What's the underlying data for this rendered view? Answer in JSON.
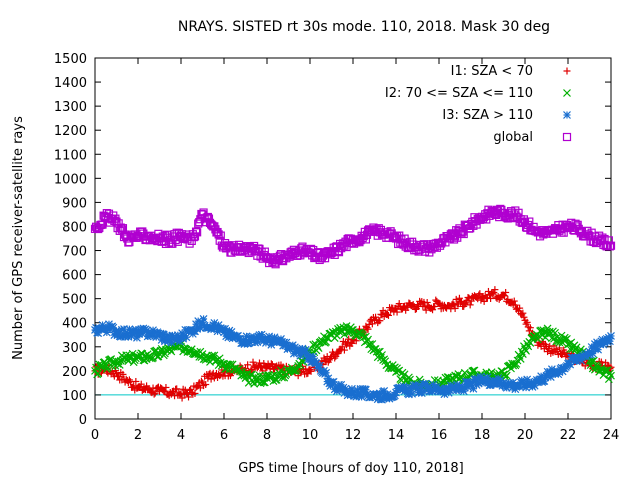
{
  "chart_data": {
    "type": "scatter",
    "title": "NRAYS. SISTED rt 30s mode. 110, 2018. Mask 30 deg",
    "xlabel": "GPS time [hours of doy 110, 2018]",
    "ylabel": "Number of GPS receiver-satellite rays",
    "xlim": [
      0,
      24
    ],
    "ylim": [
      0,
      1500
    ],
    "xticks": [
      0,
      2,
      4,
      6,
      8,
      10,
      12,
      14,
      16,
      18,
      20,
      22,
      24
    ],
    "yticks": [
      0,
      100,
      200,
      300,
      400,
      500,
      600,
      700,
      800,
      900,
      1000,
      1100,
      1200,
      1300,
      1400,
      1500
    ],
    "threshold_line": {
      "y": 100,
      "color": "#00c8c8"
    },
    "legend_position": "top-right",
    "series": [
      {
        "name": "I1: SZA < 70",
        "marker": "plus",
        "color": "#e00000",
        "x": [
          0,
          0.5,
          1,
          1.5,
          2,
          2.5,
          3,
          3.5,
          4,
          4.5,
          5,
          5.5,
          6,
          6.5,
          7,
          7.5,
          8,
          8.5,
          9,
          9.5,
          10,
          10.5,
          11,
          11.5,
          12,
          12.5,
          13,
          13.5,
          14,
          14.5,
          15,
          15.5,
          16,
          16.5,
          17,
          17.5,
          18,
          18.5,
          19,
          19.5,
          20,
          20.5,
          21,
          21.5,
          22,
          22.5,
          23,
          23.5,
          24
        ],
        "y": [
          200,
          210,
          190,
          160,
          130,
          125,
          115,
          110,
          105,
          110,
          150,
          190,
          195,
          200,
          210,
          220,
          215,
          210,
          200,
          200,
          205,
          230,
          260,
          300,
          330,
          370,
          410,
          440,
          460,
          470,
          475,
          470,
          480,
          470,
          485,
          490,
          505,
          520,
          515,
          490,
          410,
          330,
          300,
          280,
          260,
          245,
          230,
          220,
          215
        ]
      },
      {
        "name": "I2: 70 <= SZA <= 110",
        "marker": "cross",
        "color": "#00b000",
        "x": [
          0,
          0.5,
          1,
          1.5,
          2,
          2.5,
          3,
          3.5,
          4,
          4.5,
          5,
          5.5,
          6,
          6.5,
          7,
          7.5,
          8,
          8.5,
          9,
          9.5,
          10,
          10.5,
          11,
          11.5,
          12,
          12.5,
          13,
          13.5,
          14,
          14.5,
          15,
          15.5,
          16,
          16.5,
          17,
          17.5,
          18,
          18.5,
          19,
          19.5,
          20,
          20.5,
          21,
          21.5,
          22,
          22.5,
          23,
          23.5,
          24
        ],
        "y": [
          200,
          220,
          240,
          250,
          255,
          260,
          270,
          290,
          300,
          290,
          270,
          250,
          230,
          210,
          170,
          165,
          170,
          180,
          195,
          230,
          280,
          320,
          350,
          365,
          370,
          340,
          290,
          240,
          195,
          160,
          145,
          140,
          145,
          160,
          175,
          185,
          180,
          175,
          185,
          230,
          290,
          340,
          360,
          340,
          310,
          280,
          240,
          200,
          180
        ]
      },
      {
        "name": "I3: SZA > 110",
        "marker": "star",
        "color": "#1a6fd0",
        "x": [
          0,
          0.5,
          1,
          1.5,
          2,
          2.5,
          3,
          3.5,
          4,
          4.5,
          5,
          5.5,
          6,
          6.5,
          7,
          7.5,
          8,
          8.5,
          9,
          9.5,
          10,
          10.5,
          11,
          11.5,
          12,
          12.5,
          13,
          13.5,
          14,
          14.5,
          15,
          15.5,
          16,
          16.5,
          17,
          17.5,
          18,
          18.5,
          19,
          19.5,
          20,
          20.5,
          21,
          21.5,
          22,
          22.5,
          23,
          23.5,
          24
        ],
        "y": [
          370,
          380,
          365,
          355,
          355,
          360,
          350,
          330,
          340,
          370,
          400,
          390,
          360,
          340,
          330,
          335,
          330,
          320,
          300,
          280,
          260,
          200,
          150,
          120,
          110,
          105,
          100,
          100,
          110,
          120,
          125,
          130,
          125,
          120,
          130,
          140,
          160,
          160,
          150,
          140,
          145,
          155,
          180,
          200,
          230,
          255,
          280,
          310,
          345
        ]
      },
      {
        "name": "global",
        "marker": "square",
        "color": "#b000d0",
        "x": [
          0,
          0.5,
          1,
          1.5,
          2,
          2.5,
          3,
          3.5,
          4,
          4.5,
          5,
          5.5,
          6,
          6.5,
          7,
          7.5,
          8,
          8.5,
          9,
          9.5,
          10,
          10.5,
          11,
          11.5,
          12,
          12.5,
          13,
          13.5,
          14,
          14.5,
          15,
          15.5,
          16,
          16.5,
          17,
          17.5,
          18,
          18.5,
          19,
          19.5,
          20,
          20.5,
          21,
          21.5,
          22,
          22.5,
          23,
          23.5,
          24
        ],
        "y": [
          790,
          840,
          820,
          750,
          760,
          760,
          750,
          745,
          760,
          740,
          850,
          800,
          720,
          700,
          710,
          700,
          670,
          660,
          680,
          700,
          690,
          670,
          690,
          720,
          745,
          760,
          780,
          775,
          750,
          730,
          715,
          710,
          730,
          750,
          775,
          810,
          840,
          860,
          855,
          850,
          820,
          780,
          770,
          785,
          800,
          790,
          760,
          740,
          720
        ]
      }
    ]
  }
}
